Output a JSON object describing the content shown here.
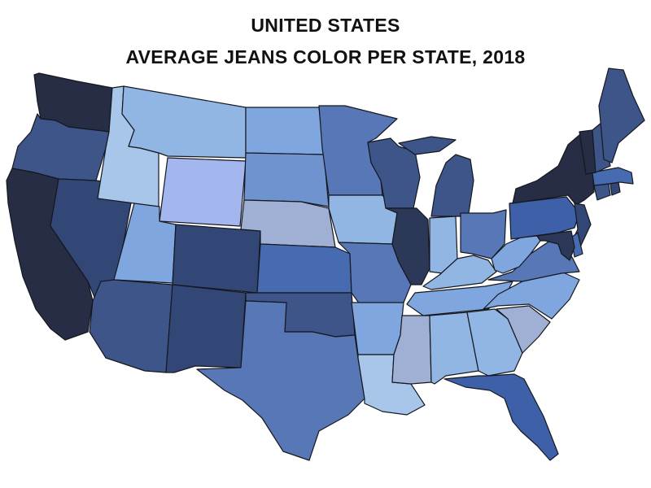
{
  "title": {
    "line1": "UNITED STATES",
    "line2": "AVERAGE JEANS COLOR PER STATE, 2018"
  },
  "colors": {
    "deep_navy": "#262d44",
    "dark_navy": "#2c3858",
    "navy_blue": "#334777",
    "slate_blue": "#3d5589",
    "royal_medium": "#3e60a8",
    "medium_blue": "#476bb0",
    "steel_blue": "#5777b6",
    "cornflower": "#6f93cf",
    "sky_blue": "#7fa6de",
    "light_blue": "#92b6e4",
    "pale_blue": "#a8c6ea",
    "grey_blue": "#a0b0d4",
    "periwinkle": "#a3b6ee",
    "border": "#15181f"
  },
  "states": [
    {
      "id": "WA",
      "shade": "deep_navy"
    },
    {
      "id": "OR",
      "shade": "slate_blue"
    },
    {
      "id": "CA",
      "shade": "deep_navy"
    },
    {
      "id": "NV",
      "shade": "navy_blue"
    },
    {
      "id": "ID",
      "shade": "pale_blue"
    },
    {
      "id": "MT",
      "shade": "light_blue"
    },
    {
      "id": "WY",
      "shade": "periwinkle"
    },
    {
      "id": "UT",
      "shade": "sky_blue"
    },
    {
      "id": "AZ",
      "shade": "slate_blue"
    },
    {
      "id": "CO",
      "shade": "navy_blue"
    },
    {
      "id": "NM",
      "shade": "navy_blue"
    },
    {
      "id": "ND",
      "shade": "sky_blue"
    },
    {
      "id": "SD",
      "shade": "cornflower"
    },
    {
      "id": "NE",
      "shade": "grey_blue"
    },
    {
      "id": "KS",
      "shade": "medium_blue"
    },
    {
      "id": "OK",
      "shade": "slate_blue"
    },
    {
      "id": "TX",
      "shade": "steel_blue"
    },
    {
      "id": "MN",
      "shade": "steel_blue"
    },
    {
      "id": "IA",
      "shade": "light_blue"
    },
    {
      "id": "MO",
      "shade": "steel_blue"
    },
    {
      "id": "AR",
      "shade": "sky_blue"
    },
    {
      "id": "LA",
      "shade": "pale_blue"
    },
    {
      "id": "WI",
      "shade": "slate_blue"
    },
    {
      "id": "IL",
      "shade": "dark_navy"
    },
    {
      "id": "MI",
      "shade": "slate_blue"
    },
    {
      "id": "IN",
      "shade": "light_blue"
    },
    {
      "id": "OH",
      "shade": "steel_blue"
    },
    {
      "id": "KY",
      "shade": "light_blue"
    },
    {
      "id": "TN",
      "shade": "sky_blue"
    },
    {
      "id": "MS",
      "shade": "grey_blue"
    },
    {
      "id": "AL",
      "shade": "light_blue"
    },
    {
      "id": "GA",
      "shade": "light_blue"
    },
    {
      "id": "FL",
      "shade": "royal_medium"
    },
    {
      "id": "SC",
      "shade": "grey_blue"
    },
    {
      "id": "NC",
      "shade": "sky_blue"
    },
    {
      "id": "VA",
      "shade": "steel_blue"
    },
    {
      "id": "WV",
      "shade": "sky_blue"
    },
    {
      "id": "PA",
      "shade": "royal_medium"
    },
    {
      "id": "NY",
      "shade": "deep_navy"
    },
    {
      "id": "NJ",
      "shade": "navy_blue"
    },
    {
      "id": "DE",
      "shade": "medium_blue"
    },
    {
      "id": "MD",
      "shade": "dark_navy"
    },
    {
      "id": "CT",
      "shade": "slate_blue"
    },
    {
      "id": "RI",
      "shade": "navy_blue"
    },
    {
      "id": "MA",
      "shade": "medium_blue"
    },
    {
      "id": "VT",
      "shade": "deep_navy"
    },
    {
      "id": "NH",
      "shade": "slate_blue"
    },
    {
      "id": "ME",
      "shade": "slate_blue"
    }
  ]
}
